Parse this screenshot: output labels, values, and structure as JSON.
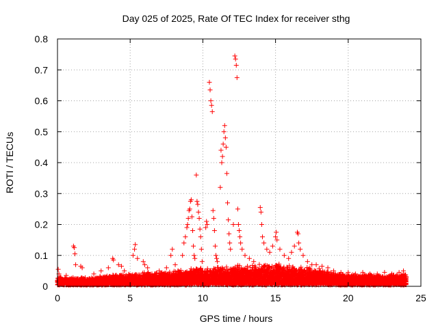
{
  "chart_data": {
    "type": "scatter",
    "title": "Day 025 of 2025, Rate Of TEC Index for receiver sthg",
    "xlabel": "GPS time / hours",
    "ylabel": "ROTI / TECUs",
    "xlim": [
      0,
      25
    ],
    "ylim": [
      0,
      0.8
    ],
    "x_ticks": [
      0,
      5,
      10,
      15,
      20,
      25
    ],
    "x_tick_labels": [
      "0",
      "5",
      "10",
      "15",
      "20",
      "25"
    ],
    "y_ticks": [
      0,
      0.1,
      0.2,
      0.3,
      0.4,
      0.5,
      0.6,
      0.7,
      0.8
    ],
    "y_tick_labels": [
      "0",
      "0.1",
      "0.2",
      "0.3",
      "0.4",
      "0.5",
      "0.6",
      "0.7",
      "0.8"
    ],
    "grid": true,
    "marker": "+",
    "color": "#ff0000",
    "series": [
      {
        "name": "ROTI",
        "points": [
          [
            0.05,
            0.055
          ],
          [
            0.1,
            0.04
          ],
          [
            0.2,
            0.03
          ],
          [
            0.4,
            0.02
          ],
          [
            0.6,
            0.035
          ],
          [
            1.1,
            0.13
          ],
          [
            1.15,
            0.125
          ],
          [
            1.2,
            0.105
          ],
          [
            1.25,
            0.07
          ],
          [
            1.6,
            0.065
          ],
          [
            1.7,
            0.06
          ],
          [
            2.5,
            0.04
          ],
          [
            3.0,
            0.05
          ],
          [
            3.5,
            0.06
          ],
          [
            3.8,
            0.09
          ],
          [
            3.85,
            0.085
          ],
          [
            4.2,
            0.07
          ],
          [
            4.4,
            0.065
          ],
          [
            4.6,
            0.05
          ],
          [
            5.2,
            0.1
          ],
          [
            5.3,
            0.12
          ],
          [
            5.35,
            0.135
          ],
          [
            5.5,
            0.09
          ],
          [
            5.9,
            0.08
          ],
          [
            6.0,
            0.07
          ],
          [
            6.2,
            0.06
          ],
          [
            6.5,
            0.04
          ],
          [
            7.0,
            0.05
          ],
          [
            7.5,
            0.06
          ],
          [
            7.8,
            0.1
          ],
          [
            7.9,
            0.12
          ],
          [
            8.1,
            0.07
          ],
          [
            8.3,
            0.05
          ],
          [
            8.6,
            0.1
          ],
          [
            8.7,
            0.14
          ],
          [
            8.8,
            0.16
          ],
          [
            8.9,
            0.19
          ],
          [
            8.95,
            0.2
          ],
          [
            9.0,
            0.22
          ],
          [
            9.05,
            0.245
          ],
          [
            9.1,
            0.25
          ],
          [
            9.15,
            0.275
          ],
          [
            9.2,
            0.28
          ],
          [
            9.25,
            0.225
          ],
          [
            9.3,
            0.18
          ],
          [
            9.35,
            0.13
          ],
          [
            9.4,
            0.1
          ],
          [
            9.45,
            0.09
          ],
          [
            9.55,
            0.36
          ],
          [
            9.6,
            0.275
          ],
          [
            9.65,
            0.265
          ],
          [
            9.7,
            0.24
          ],
          [
            9.75,
            0.22
          ],
          [
            9.8,
            0.185
          ],
          [
            9.85,
            0.16
          ],
          [
            9.9,
            0.12
          ],
          [
            9.95,
            0.08
          ],
          [
            10.2,
            0.19
          ],
          [
            10.25,
            0.21
          ],
          [
            10.3,
            0.2
          ],
          [
            10.45,
            0.66
          ],
          [
            10.5,
            0.635
          ],
          [
            10.55,
            0.6
          ],
          [
            10.6,
            0.585
          ],
          [
            10.65,
            0.565
          ],
          [
            10.7,
            0.245
          ],
          [
            10.75,
            0.22
          ],
          [
            10.8,
            0.18
          ],
          [
            10.85,
            0.13
          ],
          [
            10.9,
            0.1
          ],
          [
            10.95,
            0.09
          ],
          [
            11.0,
            0.08
          ],
          [
            11.2,
            0.32
          ],
          [
            11.25,
            0.44
          ],
          [
            11.3,
            0.4
          ],
          [
            11.35,
            0.42
          ],
          [
            11.4,
            0.46
          ],
          [
            11.45,
            0.5
          ],
          [
            11.5,
            0.52
          ],
          [
            11.55,
            0.48
          ],
          [
            11.6,
            0.45
          ],
          [
            11.65,
            0.365
          ],
          [
            11.7,
            0.27
          ],
          [
            11.75,
            0.215
          ],
          [
            11.8,
            0.17
          ],
          [
            11.85,
            0.14
          ],
          [
            11.9,
            0.12
          ],
          [
            12.1,
            0.2
          ],
          [
            12.2,
            0.745
          ],
          [
            12.25,
            0.735
          ],
          [
            12.3,
            0.715
          ],
          [
            12.35,
            0.675
          ],
          [
            12.4,
            0.25
          ],
          [
            12.45,
            0.2
          ],
          [
            12.5,
            0.18
          ],
          [
            12.55,
            0.16
          ],
          [
            12.6,
            0.14
          ],
          [
            12.7,
            0.12
          ],
          [
            12.9,
            0.1
          ],
          [
            13.2,
            0.09
          ],
          [
            13.5,
            0.08
          ],
          [
            13.95,
            0.255
          ],
          [
            14.0,
            0.24
          ],
          [
            14.05,
            0.2
          ],
          [
            14.1,
            0.16
          ],
          [
            14.2,
            0.14
          ],
          [
            14.4,
            0.12
          ],
          [
            14.6,
            0.11
          ],
          [
            14.8,
            0.13
          ],
          [
            15.0,
            0.16
          ],
          [
            15.05,
            0.175
          ],
          [
            15.1,
            0.15
          ],
          [
            15.3,
            0.12
          ],
          [
            15.6,
            0.1
          ],
          [
            15.9,
            0.09
          ],
          [
            16.1,
            0.11
          ],
          [
            16.3,
            0.13
          ],
          [
            16.5,
            0.175
          ],
          [
            16.55,
            0.17
          ],
          [
            16.6,
            0.14
          ],
          [
            16.7,
            0.12
          ],
          [
            16.9,
            0.1
          ],
          [
            17.2,
            0.08
          ],
          [
            17.5,
            0.07
          ],
          [
            17.8,
            0.07
          ],
          [
            18.2,
            0.065
          ],
          [
            18.6,
            0.06
          ],
          [
            19.0,
            0.05
          ],
          [
            19.5,
            0.045
          ],
          [
            20.0,
            0.045
          ],
          [
            20.5,
            0.04
          ],
          [
            21.0,
            0.045
          ],
          [
            21.5,
            0.04
          ],
          [
            22.0,
            0.04
          ],
          [
            22.5,
            0.045
          ],
          [
            23.0,
            0.04
          ],
          [
            23.5,
            0.045
          ],
          [
            23.8,
            0.05
          ],
          [
            24.0,
            0.03
          ]
        ],
        "baseline_envelope": [
          [
            0,
            0.02
          ],
          [
            1,
            0.022
          ],
          [
            2,
            0.02
          ],
          [
            3,
            0.025
          ],
          [
            4,
            0.03
          ],
          [
            5,
            0.03
          ],
          [
            6,
            0.035
          ],
          [
            7,
            0.035
          ],
          [
            8,
            0.04
          ],
          [
            9,
            0.045
          ],
          [
            10,
            0.05
          ],
          [
            11,
            0.05
          ],
          [
            12,
            0.055
          ],
          [
            13,
            0.055
          ],
          [
            14,
            0.06
          ],
          [
            15,
            0.06
          ],
          [
            16,
            0.055
          ],
          [
            17,
            0.05
          ],
          [
            18,
            0.045
          ],
          [
            19,
            0.035
          ],
          [
            20,
            0.03
          ],
          [
            21,
            0.03
          ],
          [
            22,
            0.03
          ],
          [
            23,
            0.03
          ],
          [
            24,
            0.03
          ]
        ]
      }
    ]
  }
}
